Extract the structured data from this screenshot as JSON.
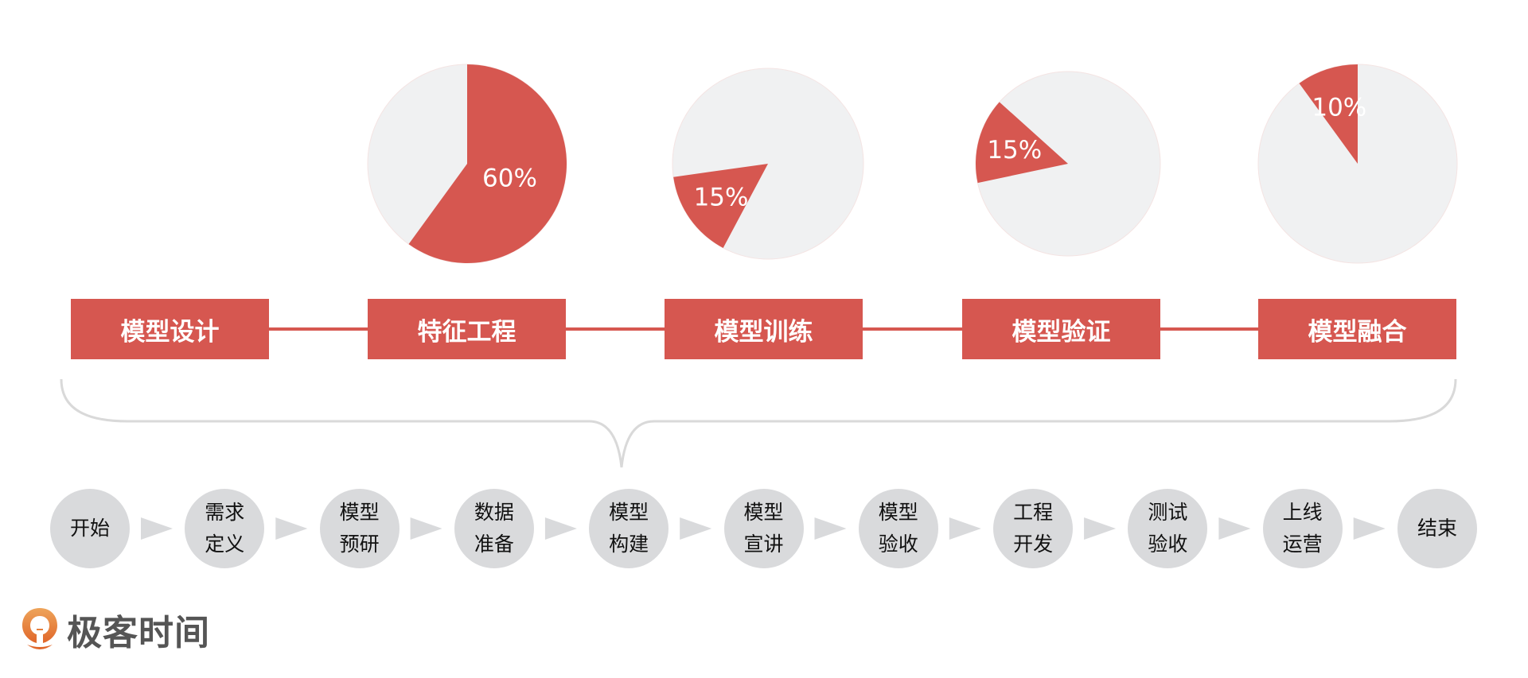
{
  "colors": {
    "accent": "#d65750",
    "pie_bg": "#f0f1f2",
    "step_bg": "#d9dadc",
    "brace": "#d9d9d9"
  },
  "stages": [
    {
      "label": "模型设计"
    },
    {
      "label": "特征工程",
      "percent": 60,
      "percent_label": "60%"
    },
    {
      "label": "模型训练",
      "percent": 15,
      "percent_label": "15%"
    },
    {
      "label": "模型验证",
      "percent": 15,
      "percent_label": "15%"
    },
    {
      "label": "模型融合",
      "percent": 10,
      "percent_label": "10%"
    }
  ],
  "steps": [
    {
      "line1": "开始",
      "line2": ""
    },
    {
      "line1": "需求",
      "line2": "定义"
    },
    {
      "line1": "模型",
      "line2": "预研"
    },
    {
      "line1": "数据",
      "line2": "准备"
    },
    {
      "line1": "模型",
      "line2": "构建"
    },
    {
      "line1": "模型",
      "line2": "宣讲"
    },
    {
      "line1": "模型",
      "line2": "验收"
    },
    {
      "line1": "工程",
      "line2": "开发"
    },
    {
      "line1": "测试",
      "line2": "验收"
    },
    {
      "line1": "上线",
      "line2": "运营"
    },
    {
      "line1": "结束",
      "line2": ""
    }
  ],
  "logo": {
    "text": "极客时间"
  }
}
